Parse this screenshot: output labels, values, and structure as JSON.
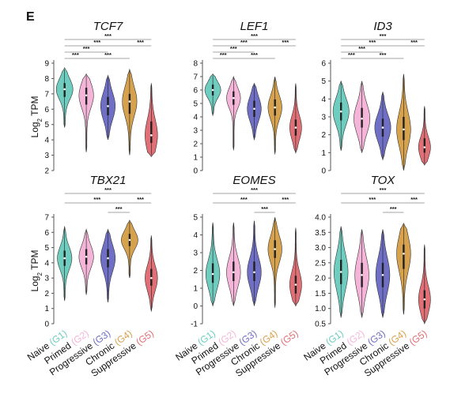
{
  "panel_label": "E",
  "ylabel": {
    "main": "Log",
    "sub": "2",
    "rest": " TPM"
  },
  "groups": [
    {
      "name": "Naive",
      "code": "(G1)",
      "color": "#6fcdc0"
    },
    {
      "name": "Primed",
      "code": "(G2)",
      "color": "#f5b5d8"
    },
    {
      "name": "Progressive",
      "code": "(G3)",
      "color": "#6f6fc6"
    },
    {
      "name": "Chronic",
      "code": "(G4)",
      "color": "#d6a24e"
    },
    {
      "name": "Suppressive",
      "code": "(G5)",
      "color": "#e06f76"
    }
  ],
  "chart_data": [
    {
      "type": "violin",
      "title": "TCF7",
      "ylim": [
        2,
        9
      ],
      "yticks": [
        2,
        3,
        4,
        5,
        6,
        7,
        8,
        9
      ],
      "series": [
        {
          "name": "Naive (G1)",
          "median": 7.3,
          "min": 4.8,
          "max": 8.7,
          "q1": 6.8,
          "q3": 7.7,
          "width": 0.8
        },
        {
          "name": "Primed (G2)",
          "median": 6.9,
          "min": 3.2,
          "max": 8.3,
          "q1": 6.3,
          "q3": 7.4,
          "width": 0.7
        },
        {
          "name": "Progressive (G3)",
          "median": 6.2,
          "min": 4.0,
          "max": 8.2,
          "q1": 5.6,
          "q3": 6.8,
          "width": 0.7
        },
        {
          "name": "Chronic (G4)",
          "median": 6.5,
          "min": 3.0,
          "max": 8.6,
          "q1": 5.7,
          "q3": 7.0,
          "width": 0.7
        },
        {
          "name": "Suppressive (G5)",
          "median": 4.3,
          "min": 2.9,
          "max": 7.7,
          "q1": 3.8,
          "q3": 5.2,
          "width": 0.6
        }
      ],
      "sig": [
        {
          "from": 0,
          "to": 1,
          "label": "***"
        },
        {
          "from": 0,
          "to": 2,
          "label": "***"
        },
        {
          "from": 0,
          "to": 3,
          "label": "***"
        },
        {
          "from": 0,
          "to": 4,
          "label": "***"
        },
        {
          "from": 1,
          "to": 3,
          "label": "***"
        },
        {
          "from": 3,
          "to": 4,
          "label": "***"
        }
      ]
    },
    {
      "type": "violin",
      "title": "LEF1",
      "ylim": [
        0,
        8
      ],
      "yticks": [
        0,
        1,
        2,
        3,
        4,
        5,
        6,
        7,
        8
      ],
      "series": [
        {
          "name": "Naive (G1)",
          "median": 6.0,
          "min": 4.1,
          "max": 7.2,
          "q1": 5.6,
          "q3": 6.4,
          "width": 0.8
        },
        {
          "name": "Primed (G2)",
          "median": 5.4,
          "min": 1.5,
          "max": 7.0,
          "q1": 4.9,
          "q3": 5.9,
          "width": 0.7
        },
        {
          "name": "Progressive (G3)",
          "median": 4.6,
          "min": 2.3,
          "max": 6.5,
          "q1": 4.0,
          "q3": 5.2,
          "width": 0.7
        },
        {
          "name": "Chronic (G4)",
          "median": 4.7,
          "min": 1.2,
          "max": 7.0,
          "q1": 4.1,
          "q3": 5.3,
          "width": 0.7
        },
        {
          "name": "Suppressive (G5)",
          "median": 3.2,
          "min": 1.3,
          "max": 6.5,
          "q1": 2.6,
          "q3": 3.8,
          "width": 0.6
        }
      ],
      "sig": [
        {
          "from": 0,
          "to": 1,
          "label": "***"
        },
        {
          "from": 0,
          "to": 2,
          "label": "***"
        },
        {
          "from": 0,
          "to": 3,
          "label": "***"
        },
        {
          "from": 0,
          "to": 4,
          "label": "***"
        },
        {
          "from": 1,
          "to": 3,
          "label": "***"
        },
        {
          "from": 3,
          "to": 4,
          "label": "***"
        }
      ]
    },
    {
      "type": "violin",
      "title": "ID3",
      "ylim": [
        0,
        6
      ],
      "yticks": [
        0,
        1,
        2,
        3,
        4,
        5,
        6
      ],
      "series": [
        {
          "name": "Naive (G1)",
          "median": 3.3,
          "min": 1.1,
          "max": 5.0,
          "q1": 2.8,
          "q3": 3.8,
          "width": 0.8
        },
        {
          "name": "Primed (G2)",
          "median": 2.9,
          "min": 1.0,
          "max": 5.0,
          "q1": 2.4,
          "q3": 3.5,
          "width": 0.8
        },
        {
          "name": "Progressive (G3)",
          "median": 2.4,
          "min": 0.6,
          "max": 4.4,
          "q1": 1.9,
          "q3": 2.9,
          "width": 0.8
        },
        {
          "name": "Chronic (G4)",
          "median": 2.3,
          "min": 0.0,
          "max": 5.4,
          "q1": 1.7,
          "q3": 3.0,
          "width": 0.7
        },
        {
          "name": "Suppressive (G5)",
          "median": 1.3,
          "min": 0.3,
          "max": 3.6,
          "q1": 1.0,
          "q3": 1.8,
          "width": 0.6
        }
      ],
      "sig": [
        {
          "from": 0,
          "to": 1,
          "label": "***"
        },
        {
          "from": 0,
          "to": 2,
          "label": "***"
        },
        {
          "from": 0,
          "to": 3,
          "label": "***"
        },
        {
          "from": 0,
          "to": 4,
          "label": "***"
        },
        {
          "from": 1,
          "to": 3,
          "label": "***"
        },
        {
          "from": 3,
          "to": 4,
          "label": "***"
        }
      ]
    },
    {
      "type": "violin",
      "title": "TBX21",
      "ylim": [
        0,
        7
      ],
      "yticks": [
        0,
        1,
        2,
        3,
        4,
        5,
        6,
        7
      ],
      "series": [
        {
          "name": "Naive (G1)",
          "median": 4.3,
          "min": 1.5,
          "max": 6.4,
          "q1": 3.8,
          "q3": 4.8,
          "width": 0.7
        },
        {
          "name": "Primed (G2)",
          "median": 4.4,
          "min": 1.9,
          "max": 6.2,
          "q1": 3.9,
          "q3": 4.9,
          "width": 0.7
        },
        {
          "name": "Progressive (G3)",
          "median": 4.3,
          "min": 1.4,
          "max": 6.2,
          "q1": 3.7,
          "q3": 4.9,
          "width": 0.7
        },
        {
          "name": "Chronic (G4)",
          "median": 5.5,
          "min": 3.0,
          "max": 6.8,
          "q1": 5.1,
          "q3": 5.9,
          "width": 0.8
        },
        {
          "name": "Suppressive (G5)",
          "median": 3.0,
          "min": 0.8,
          "max": 5.8,
          "q1": 2.5,
          "q3": 3.6,
          "width": 0.6
        }
      ],
      "sig": [
        {
          "from": 0,
          "to": 3,
          "label": "***"
        },
        {
          "from": 0,
          "to": 4,
          "label": "***"
        },
        {
          "from": 2,
          "to": 3,
          "label": "***"
        },
        {
          "from": 3,
          "to": 4,
          "label": "***"
        }
      ]
    },
    {
      "type": "violin",
      "title": "EOMES",
      "ylim": [
        -1,
        5
      ],
      "yticks": [
        -1,
        0,
        1,
        2,
        3,
        4,
        5
      ],
      "series": [
        {
          "name": "Naive (G1)",
          "median": 1.8,
          "min": 0.0,
          "max": 4.7,
          "q1": 1.3,
          "q3": 2.4,
          "width": 0.7
        },
        {
          "name": "Primed (G2)",
          "median": 1.9,
          "min": 0.0,
          "max": 4.7,
          "q1": 1.4,
          "q3": 2.5,
          "width": 0.7
        },
        {
          "name": "Progressive (G3)",
          "median": 1.9,
          "min": 0.0,
          "max": 4.8,
          "q1": 1.4,
          "q3": 2.5,
          "width": 0.7
        },
        {
          "name": "Chronic (G4)",
          "median": 3.2,
          "min": -0.1,
          "max": 5.0,
          "q1": 2.7,
          "q3": 3.7,
          "width": 0.7
        },
        {
          "name": "Suppressive (G5)",
          "median": 1.2,
          "min": 0.0,
          "max": 4.4,
          "q1": 0.7,
          "q3": 1.7,
          "width": 0.6
        }
      ],
      "sig": [
        {
          "from": 0,
          "to": 3,
          "label": "***"
        },
        {
          "from": 0,
          "to": 4,
          "label": "***"
        },
        {
          "from": 2,
          "to": 3,
          "label": "***"
        },
        {
          "from": 3,
          "to": 4,
          "label": "***"
        }
      ]
    },
    {
      "type": "violin",
      "title": "TOX",
      "ylim": [
        0.5,
        4.0
      ],
      "yticks": [
        0.5,
        1.0,
        1.5,
        2.0,
        2.5,
        3.0,
        3.5,
        4.0
      ],
      "series": [
        {
          "name": "Naive (G1)",
          "median": 2.2,
          "min": 0.7,
          "max": 3.7,
          "q1": 1.8,
          "q3": 2.6,
          "width": 0.7
        },
        {
          "name": "Primed (G2)",
          "median": 2.1,
          "min": 0.7,
          "max": 3.6,
          "q1": 1.7,
          "q3": 2.5,
          "width": 0.7
        },
        {
          "name": "Progressive (G3)",
          "median": 2.1,
          "min": 0.7,
          "max": 3.6,
          "q1": 1.7,
          "q3": 2.5,
          "width": 0.7
        },
        {
          "name": "Chronic (G4)",
          "median": 2.8,
          "min": 0.8,
          "max": 3.8,
          "q1": 2.3,
          "q3": 3.1,
          "width": 0.7
        },
        {
          "name": "Suppressive (G5)",
          "median": 1.3,
          "min": 0.5,
          "max": 3.1,
          "q1": 1.0,
          "q3": 1.6,
          "width": 0.6
        }
      ],
      "sig": [
        {
          "from": 0,
          "to": 3,
          "label": "***"
        },
        {
          "from": 0,
          "to": 4,
          "label": "***"
        },
        {
          "from": 2,
          "to": 3,
          "label": "***"
        },
        {
          "from": 3,
          "to": 4,
          "label": "***"
        }
      ]
    }
  ]
}
